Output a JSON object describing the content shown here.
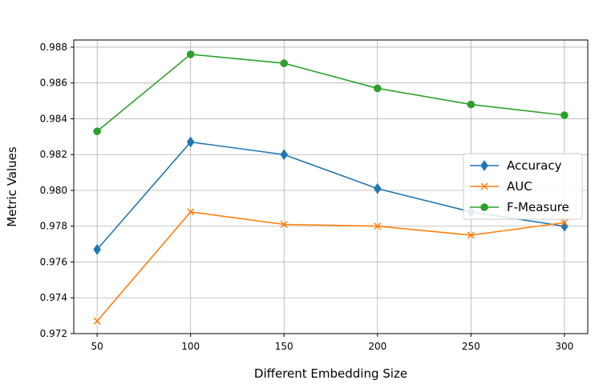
{
  "chart_data": {
    "type": "line",
    "title": "",
    "xlabel": "Different Embedding Size",
    "ylabel": "Metric Values",
    "x": [
      50,
      100,
      150,
      200,
      250,
      300
    ],
    "xlim": [
      37.5,
      312.5
    ],
    "ylim": [
      0.972,
      0.9884
    ],
    "xticks": [
      50,
      100,
      150,
      200,
      250,
      300
    ],
    "yticks": [
      0.972,
      0.974,
      0.976,
      0.978,
      0.98,
      0.982,
      0.984,
      0.986,
      0.988
    ],
    "ytick_labels": [
      "0.972",
      "0.974",
      "0.976",
      "0.978",
      "0.980",
      "0.982",
      "0.984",
      "0.986",
      "0.988"
    ],
    "grid": true,
    "legend_position": "center-right",
    "series": [
      {
        "name": "Accuracy",
        "color": "#1f77b4",
        "marker": "diamond",
        "values": [
          0.9767,
          0.9827,
          0.982,
          0.9801,
          0.9788,
          0.978
        ]
      },
      {
        "name": "AUC",
        "color": "#ff7f0e",
        "marker": "x",
        "values": [
          0.9727,
          0.9788,
          0.9781,
          0.978,
          0.9775,
          0.9782
        ]
      },
      {
        "name": "F-Measure",
        "color": "#2ca02c",
        "marker": "circle",
        "values": [
          0.9833,
          0.9876,
          0.9871,
          0.9857,
          0.9848,
          0.9842
        ]
      }
    ]
  }
}
